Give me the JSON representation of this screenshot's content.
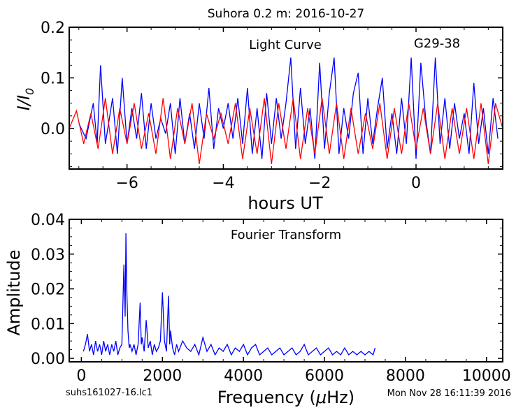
{
  "figure": {
    "title": "Suhora 0.2 m:  2016-10-27",
    "footer_left": "suhs161027-16.lc1",
    "footer_right": "Mon Nov 28 16:11:39 2016"
  },
  "chart_data": [
    {
      "type": "line",
      "annotation_left": "Light Curve",
      "annotation_right": "G29-38",
      "xlabel": "hours UT",
      "ylabel": "I/I0",
      "ylabel_main": "I/I",
      "ylabel_sub": "0",
      "xlim": [
        -7.2,
        1.8
      ],
      "ylim": [
        -0.08,
        0.2
      ],
      "xticks": [
        -6,
        -4,
        -2,
        0
      ],
      "xtick_labels": [
        "−6",
        "−4",
        "−2",
        "0"
      ],
      "yticks": [
        0.0,
        0.1,
        0.2
      ],
      "ytick_labels": [
        "0.0",
        "0.1",
        "0.2"
      ],
      "grid": false,
      "colors": {
        "observed": "#0000ff",
        "model": "#ff0000"
      },
      "series": [
        {
          "color": "#0000ff",
          "x": [
            -7.0,
            -6.85,
            -6.7,
            -6.62,
            -6.55,
            -6.45,
            -6.3,
            -6.2,
            -6.1,
            -6.0,
            -5.9,
            -5.8,
            -5.7,
            -5.6,
            -5.5,
            -5.4,
            -5.3,
            -5.2,
            -5.1,
            -5.0,
            -4.9,
            -4.8,
            -4.7,
            -4.6,
            -4.5,
            -4.4,
            -4.3,
            -4.2,
            -4.1,
            -4.0,
            -3.9,
            -3.8,
            -3.7,
            -3.6,
            -3.5,
            -3.4,
            -3.3,
            -3.2,
            -3.1,
            -3.0,
            -2.9,
            -2.8,
            -2.7,
            -2.6,
            -2.5,
            -2.4,
            -2.3,
            -2.2,
            -2.1,
            -2.0,
            -1.9,
            -1.8,
            -1.7,
            -1.6,
            -1.5,
            -1.4,
            -1.3,
            -1.2,
            -1.1,
            -1.0,
            -0.9,
            -0.8,
            -0.7,
            -0.6,
            -0.5,
            -0.4,
            -0.3,
            -0.2,
            -0.1,
            0.0,
            0.1,
            0.2,
            0.3,
            0.4,
            0.5,
            0.6,
            0.7,
            0.8,
            0.9,
            1.0,
            1.1,
            1.2,
            1.3,
            1.4,
            1.5,
            1.6,
            1.7
          ],
          "y": [
            0.01,
            -0.02,
            0.05,
            -0.03,
            0.125,
            -0.03,
            0.06,
            -0.05,
            0.1,
            -0.03,
            0.04,
            -0.02,
            0.07,
            -0.04,
            0.05,
            -0.02,
            0.02,
            -0.01,
            0.05,
            -0.05,
            0.06,
            -0.03,
            0.03,
            -0.04,
            0.05,
            -0.02,
            0.08,
            -0.04,
            0.04,
            0.0,
            0.05,
            -0.02,
            0.06,
            -0.03,
            0.08,
            -0.05,
            0.04,
            -0.06,
            0.07,
            -0.03,
            0.06,
            -0.02,
            0.05,
            0.14,
            -0.04,
            0.08,
            -0.03,
            0.04,
            -0.06,
            0.13,
            -0.04,
            0.07,
            0.14,
            -0.05,
            0.04,
            -0.02,
            0.07,
            0.11,
            -0.05,
            0.06,
            -0.03,
            0.04,
            0.1,
            -0.04,
            0.03,
            -0.05,
            0.06,
            -0.03,
            0.14,
            -0.06,
            0.13,
            0.02,
            -0.05,
            0.14,
            -0.03,
            0.06,
            -0.04,
            0.05,
            -0.02,
            0.03,
            -0.05,
            0.09,
            -0.03,
            0.04,
            -0.05,
            0.06,
            -0.02
          ]
        },
        {
          "color": "#ff0000",
          "x": [
            -7.2,
            -7.05,
            -6.9,
            -6.75,
            -6.6,
            -6.45,
            -6.3,
            -6.15,
            -6.0,
            -5.85,
            -5.7,
            -5.55,
            -5.4,
            -5.25,
            -5.1,
            -4.95,
            -4.8,
            -4.65,
            -4.5,
            -4.35,
            -4.2,
            -4.05,
            -3.9,
            -3.75,
            -3.6,
            -3.45,
            -3.3,
            -3.15,
            -3.0,
            -2.85,
            -2.7,
            -2.55,
            -2.4,
            -2.25,
            -2.1,
            -1.95,
            -1.8,
            -1.65,
            -1.5,
            -1.35,
            -1.2,
            -1.05,
            -0.9,
            -0.75,
            -0.6,
            -0.45,
            -0.3,
            -0.15,
            0.0,
            0.15,
            0.3,
            0.45,
            0.6,
            0.75,
            0.9,
            1.05,
            1.2,
            1.35,
            1.5,
            1.65,
            1.8
          ],
          "y": [
            0.0,
            0.035,
            -0.03,
            0.03,
            -0.04,
            0.06,
            -0.05,
            0.04,
            -0.03,
            0.05,
            -0.04,
            0.03,
            -0.05,
            0.06,
            -0.06,
            0.04,
            -0.03,
            0.05,
            -0.07,
            0.03,
            -0.02,
            0.03,
            -0.03,
            0.05,
            -0.06,
            0.04,
            -0.05,
            0.06,
            -0.07,
            0.05,
            -0.04,
            0.06,
            -0.06,
            0.04,
            -0.05,
            0.06,
            -0.05,
            0.05,
            -0.06,
            0.04,
            -0.05,
            0.03,
            -0.04,
            0.05,
            -0.06,
            0.04,
            -0.05,
            0.05,
            -0.04,
            0.04,
            -0.05,
            0.05,
            -0.06,
            0.04,
            -0.05,
            0.04,
            -0.06,
            0.05,
            -0.07,
            0.05,
            0.0
          ]
        }
      ]
    },
    {
      "type": "line",
      "annotation": "Fourier Transform",
      "xlabel": "Frequency (μHz)",
      "xlabel_text": "Frequency (",
      "xlabel_mu": "μ",
      "xlabel_end": "Hz)",
      "ylabel": "Amplitude",
      "xlim": [
        -300,
        10400
      ],
      "ylim": [
        -0.001,
        0.04
      ],
      "xticks": [
        0,
        2000,
        4000,
        6000,
        8000,
        10000
      ],
      "xtick_labels": [
        "0",
        "2000",
        "4000",
        "6000",
        "8000",
        "10000"
      ],
      "yticks": [
        0.0,
        0.01,
        0.02,
        0.03,
        0.04
      ],
      "ytick_labels": [
        "0.00",
        "0.01",
        "0.02",
        "0.03",
        "0.04"
      ],
      "grid": false,
      "series": [
        {
          "color": "#0000ff",
          "x": [
            50,
            100,
            150,
            200,
            250,
            300,
            350,
            400,
            450,
            500,
            550,
            600,
            650,
            700,
            750,
            800,
            850,
            900,
            950,
            1000,
            1050,
            1080,
            1100,
            1120,
            1150,
            1180,
            1200,
            1250,
            1300,
            1350,
            1400,
            1450,
            1480,
            1500,
            1550,
            1600,
            1650,
            1700,
            1750,
            1800,
            1850,
            1900,
            1950,
            2000,
            2050,
            2100,
            2150,
            2180,
            2200,
            2250,
            2300,
            2350,
            2400,
            2500,
            2600,
            2700,
            2800,
            2900,
            3000,
            3100,
            3200,
            3300,
            3400,
            3500,
            3600,
            3700,
            3800,
            3900,
            4000,
            4100,
            4200,
            4300,
            4400,
            4500,
            4600,
            4700,
            4800,
            4900,
            5000,
            5100,
            5200,
            5300,
            5400,
            5500,
            5600,
            5700,
            5800,
            5900,
            6000,
            6100,
            6200,
            6300,
            6400,
            6500,
            6600,
            6700,
            6800,
            6900,
            7000,
            7100,
            7200,
            7250
          ],
          "y": [
            0.002,
            0.004,
            0.007,
            0.002,
            0.004,
            0.001,
            0.005,
            0.002,
            0.004,
            0.001,
            0.005,
            0.002,
            0.004,
            0.001,
            0.004,
            0.002,
            0.005,
            0.001,
            0.003,
            0.004,
            0.027,
            0.012,
            0.036,
            0.02,
            0.008,
            0.003,
            0.004,
            0.002,
            0.004,
            0.001,
            0.004,
            0.016,
            0.004,
            0.006,
            0.002,
            0.011,
            0.003,
            0.005,
            0.001,
            0.004,
            0.002,
            0.003,
            0.005,
            0.019,
            0.005,
            0.002,
            0.018,
            0.004,
            0.008,
            0.003,
            0.001,
            0.004,
            0.002,
            0.005,
            0.003,
            0.002,
            0.004,
            0.001,
            0.006,
            0.002,
            0.004,
            0.001,
            0.003,
            0.002,
            0.004,
            0.001,
            0.003,
            0.002,
            0.004,
            0.001,
            0.003,
            0.004,
            0.001,
            0.002,
            0.003,
            0.001,
            0.002,
            0.003,
            0.001,
            0.002,
            0.003,
            0.001,
            0.002,
            0.004,
            0.001,
            0.002,
            0.003,
            0.001,
            0.002,
            0.003,
            0.001,
            0.002,
            0.001,
            0.003,
            0.001,
            0.002,
            0.001,
            0.002,
            0.001,
            0.002,
            0.001,
            0.003
          ]
        }
      ]
    }
  ]
}
